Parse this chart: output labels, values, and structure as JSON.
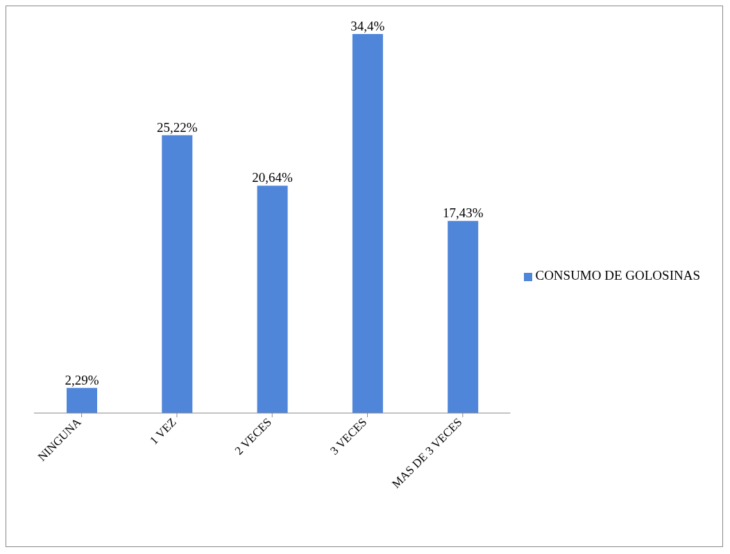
{
  "chart_data": {
    "type": "bar",
    "categories": [
      "NINGUNA",
      "1 VEZ",
      "2 VECES",
      "3 VECES",
      "MAS DE 3 VECES"
    ],
    "series": [
      {
        "name": "CONSUMO DE GOLOSINAS",
        "color": "#4f86d9",
        "values": [
          2.29,
          25.22,
          20.64,
          34.4,
          17.43
        ],
        "value_labels": [
          "2,29%",
          "25,22%",
          "20,64%",
          "34,4%",
          "17,43%"
        ]
      }
    ],
    "legend": "right"
  }
}
